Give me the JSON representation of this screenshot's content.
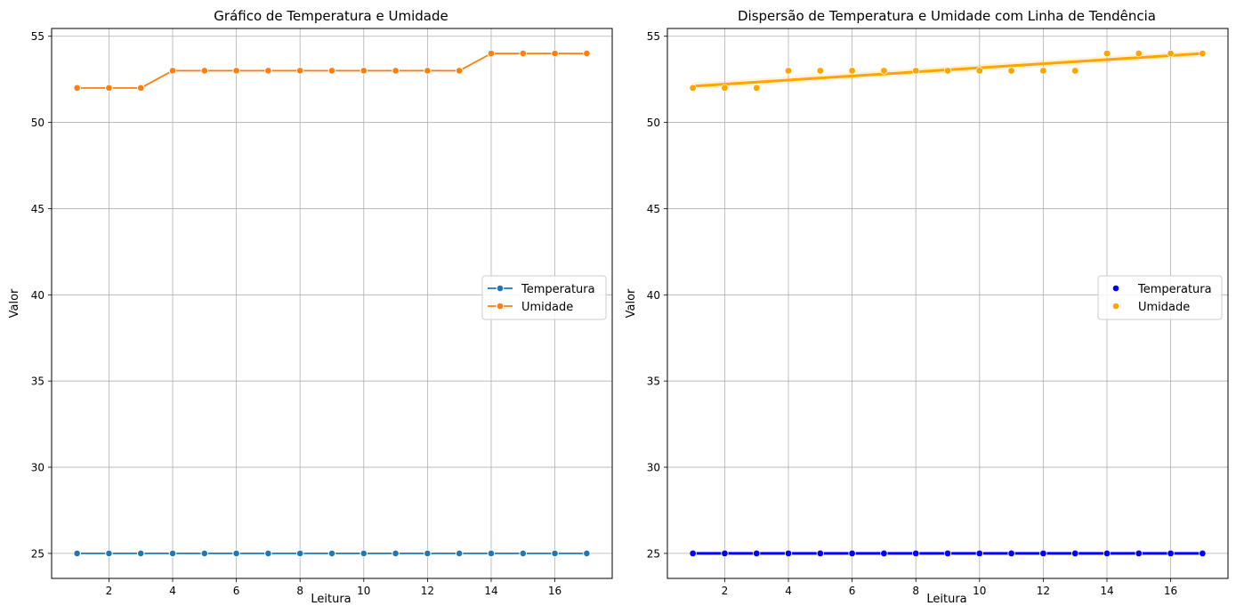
{
  "chart_data": [
    {
      "type": "line",
      "title": "Gráfico de Temperatura e Umidade",
      "xlabel": "Leitura",
      "ylabel": "Valor",
      "xlim": [
        0.2,
        17.8
      ],
      "ylim": [
        23.55,
        55.45
      ],
      "xticks": [
        2,
        4,
        6,
        8,
        10,
        12,
        14,
        16
      ],
      "yticks": [
        25,
        30,
        35,
        40,
        45,
        50,
        55
      ],
      "grid": true,
      "legend": "center-right",
      "x": [
        1,
        2,
        3,
        4,
        5,
        6,
        7,
        8,
        9,
        10,
        11,
        12,
        13,
        14,
        15,
        16,
        17
      ],
      "series": [
        {
          "name": "Temperatura",
          "color": "#1f77b4",
          "marker": "circle",
          "values": [
            25,
            25,
            25,
            25,
            25,
            25,
            25,
            25,
            25,
            25,
            25,
            25,
            25,
            25,
            25,
            25,
            25
          ]
        },
        {
          "name": "Umidade",
          "color": "#ff7f0e",
          "marker": "circle",
          "values": [
            52,
            52,
            52,
            53,
            53,
            53,
            53,
            53,
            53,
            53,
            53,
            53,
            53,
            54,
            54,
            54,
            54
          ]
        }
      ]
    },
    {
      "type": "scatter",
      "title": "Dispersão de Temperatura e Umidade com Linha de Tendência",
      "xlabel": "Leitura",
      "ylabel": "Valor",
      "xlim": [
        0.2,
        17.8
      ],
      "ylim": [
        23.55,
        55.45
      ],
      "xticks": [
        2,
        4,
        6,
        8,
        10,
        12,
        14,
        16
      ],
      "yticks": [
        25,
        30,
        35,
        40,
        45,
        50,
        55
      ],
      "grid": true,
      "legend": "center-right",
      "x": [
        1,
        2,
        3,
        4,
        5,
        6,
        7,
        8,
        9,
        10,
        11,
        12,
        13,
        14,
        15,
        16,
        17
      ],
      "series": [
        {
          "name": "Temperatura",
          "color": "#0000ff",
          "values": [
            25,
            25,
            25,
            25,
            25,
            25,
            25,
            25,
            25,
            25,
            25,
            25,
            25,
            25,
            25,
            25,
            25
          ],
          "trend": [
            25,
            25
          ]
        },
        {
          "name": "Umidade",
          "color": "#ffa500",
          "values": [
            52,
            52,
            52,
            53,
            53,
            53,
            53,
            53,
            53,
            53,
            53,
            53,
            53,
            54,
            54,
            54,
            54
          ],
          "trend": [
            52.1,
            54.0
          ]
        }
      ]
    }
  ]
}
